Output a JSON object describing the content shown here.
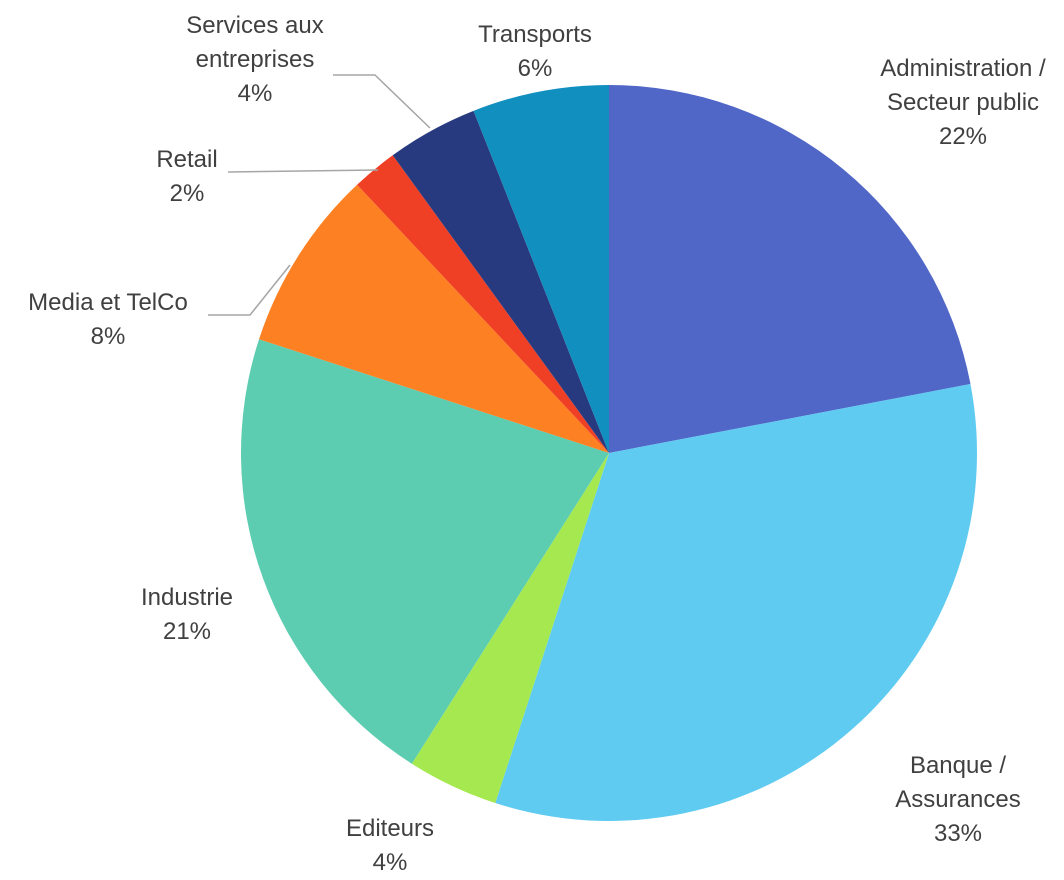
{
  "chart_data": {
    "type": "pie",
    "categories": [
      "Administration / Secteur public",
      "Banque / Assurances",
      "Editeurs",
      "Industrie",
      "Media et TelCo",
      "Retail",
      "Services aux entreprises",
      "Transports"
    ],
    "values": [
      22,
      33,
      4,
      21,
      8,
      2,
      4,
      6
    ],
    "value_labels": [
      "22%",
      "33%",
      "4%",
      "21%",
      "8%",
      "2%",
      "4%",
      "6%"
    ],
    "colors": [
      "#5067c8",
      "#5fcbf1",
      "#a5e84f",
      "#5ccdb1",
      "#fd8023",
      "#ef4026",
      "#283a7f",
      "#118fbe"
    ]
  }
}
